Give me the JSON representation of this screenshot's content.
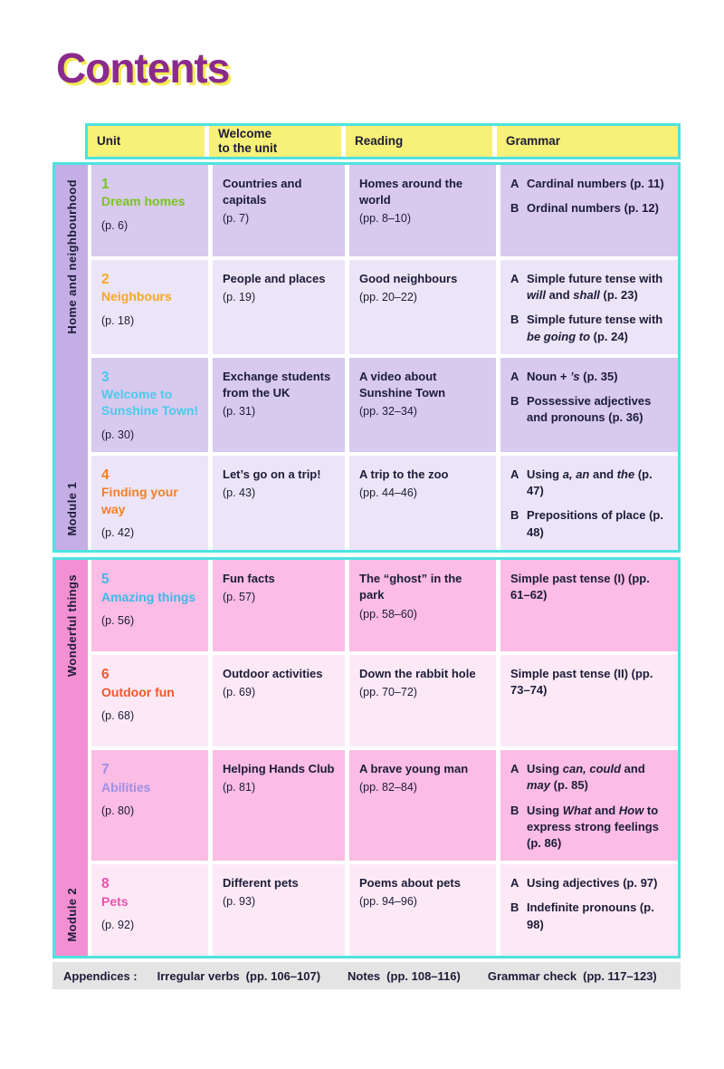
{
  "page": {
    "title": "Contents"
  },
  "colors": {
    "table_border": "#4fe2df",
    "header_bg": "#f8f177",
    "footer_bg": "#e4e4e4",
    "text": "#1c1c38",
    "title": "#8b2a8e",
    "title_shadow": "#f3ec52"
  },
  "header": {
    "columns": [
      "Unit",
      "Welcome\nto the unit",
      "Reading",
      "Grammar"
    ]
  },
  "modules": [
    {
      "name": "Module 1",
      "theme": "Home and neighbourhood",
      "sidebar_color": "#c4aee5",
      "row_colors": [
        "#d8c9ef",
        "#ece5f7"
      ],
      "rows": [
        {
          "number": "1",
          "title": "Dream homes",
          "page": "(p. 6)",
          "color": "#7ac51d",
          "welcome": {
            "text": "Countries and capitals",
            "page": "(p. 7)"
          },
          "reading": {
            "text": "Homes around the world",
            "page": "(pp. 8–10)"
          },
          "grammar": [
            {
              "label": "A",
              "segments": [
                {
                  "text": "Cardinal numbers (p. 11)"
                }
              ]
            },
            {
              "label": "B",
              "segments": [
                {
                  "text": "Ordinal numbers (p. 12)"
                }
              ]
            }
          ]
        },
        {
          "number": "2",
          "title": "Neighbours",
          "page": "(p. 18)",
          "color": "#f6a821",
          "welcome": {
            "text": "People and places",
            "page": "(p. 19)"
          },
          "reading": {
            "text": "Good neighbours",
            "page": "(pp. 20–22)"
          },
          "grammar": [
            {
              "label": "A",
              "segments": [
                {
                  "text": "Simple future tense with "
                },
                {
                  "text": "will",
                  "italic": true
                },
                {
                  "text": " and "
                },
                {
                  "text": "shall",
                  "italic": true
                },
                {
                  "text": " (p. 23)"
                }
              ]
            },
            {
              "label": "B",
              "segments": [
                {
                  "text": "Simple future tense with "
                },
                {
                  "text": "be going to",
                  "italic": true
                },
                {
                  "text": " (p. 24)"
                }
              ]
            }
          ]
        },
        {
          "number": "3",
          "title": "Welcome to Sunshine Town!",
          "page": "(p. 30)",
          "color": "#49cbe9",
          "welcome": {
            "text": "Exchange students from the UK",
            "page": "(p. 31)"
          },
          "reading": {
            "text": "A video about Sunshine Town",
            "page": "(pp. 32–34)"
          },
          "grammar": [
            {
              "label": "A",
              "segments": [
                {
                  "text": "Noun + "
                },
                {
                  "text": "’s",
                  "italic": true
                },
                {
                  "text": " (p. 35)"
                }
              ]
            },
            {
              "label": "B",
              "segments": [
                {
                  "text": "Possessive adjectives and pronouns (p. 36)"
                }
              ]
            }
          ]
        },
        {
          "number": "4",
          "title": "Finding your way",
          "page": "(p. 42)",
          "color": "#f58025",
          "welcome": {
            "text": "Let’s go on a trip!",
            "page": "(p. 43)"
          },
          "reading": {
            "text": "A trip to the zoo",
            "page": "(pp. 44–46)"
          },
          "grammar": [
            {
              "label": "A",
              "segments": [
                {
                  "text": "Using "
                },
                {
                  "text": "a, an",
                  "italic": true
                },
                {
                  "text": " and "
                },
                {
                  "text": "the",
                  "italic": true
                },
                {
                  "text": " (p. 47)"
                }
              ]
            },
            {
              "label": "B",
              "segments": [
                {
                  "text": "Prepositions of place (p. 48)"
                }
              ]
            }
          ]
        }
      ]
    },
    {
      "name": "Module 2",
      "theme": "Wonderful things",
      "sidebar_color": "#f38fd3",
      "row_colors": [
        "#fbbce5",
        "#fde9f6"
      ],
      "rows": [
        {
          "number": "5",
          "title": "Amazing things",
          "page": "(p. 56)",
          "color": "#3eb9e8",
          "welcome": {
            "text": "Fun facts",
            "page": "(p. 57)"
          },
          "reading": {
            "text": "The “ghost” in the park",
            "page": "(pp. 58–60)"
          },
          "grammar": [
            {
              "label": "",
              "segments": [
                {
                  "text": "Simple past tense (I) (pp. 61–62)"
                }
              ]
            }
          ]
        },
        {
          "number": "6",
          "title": "Outdoor fun",
          "page": "(p. 68)",
          "color": "#f2572b",
          "welcome": {
            "text": "Outdoor activities",
            "page": "(p. 69)"
          },
          "reading": {
            "text": "Down the rabbit hole",
            "page": "(pp. 70–72)"
          },
          "grammar": [
            {
              "label": "",
              "segments": [
                {
                  "text": "Simple past tense (II) (pp. 73–74)"
                }
              ]
            }
          ]
        },
        {
          "number": "7",
          "title": "Abilities",
          "page": "(p. 80)",
          "color": "#9e8fe2",
          "welcome": {
            "text": "Helping Hands Club",
            "page": "(p. 81)"
          },
          "reading": {
            "text": "A brave young man",
            "page": "(pp. 82–84)"
          },
          "grammar": [
            {
              "label": "A",
              "segments": [
                {
                  "text": "Using "
                },
                {
                  "text": "can, could",
                  "italic": true
                },
                {
                  "text": " and "
                },
                {
                  "text": "may",
                  "italic": true
                },
                {
                  "text": " (p. 85)"
                }
              ]
            },
            {
              "label": "B",
              "segments": [
                {
                  "text": "Using "
                },
                {
                  "text": "What",
                  "italic": true
                },
                {
                  "text": " and "
                },
                {
                  "text": "How",
                  "italic": true
                },
                {
                  "text": " to express strong feelings (p. 86)"
                }
              ]
            }
          ]
        },
        {
          "number": "8",
          "title": "Pets",
          "page": "(p. 92)",
          "color": "#ee4fae",
          "welcome": {
            "text": "Different pets",
            "page": "(p. 93)"
          },
          "reading": {
            "text": "Poems about pets",
            "page": "(pp. 94–96)"
          },
          "grammar": [
            {
              "label": "A",
              "segments": [
                {
                  "text": "Using adjectives (p. 97)"
                }
              ]
            },
            {
              "label": "B",
              "segments": [
                {
                  "text": "Indefinite pronouns (p. 98)"
                }
              ]
            }
          ]
        }
      ]
    }
  ],
  "footer": {
    "prefix": "Appendices :",
    "items": [
      {
        "label": "Irregular verbs",
        "pages": "(pp. 106–107)"
      },
      {
        "label": "Notes",
        "pages": "(pp. 108–116)"
      },
      {
        "label": "Grammar check",
        "pages": "(pp. 117–123)"
      }
    ]
  }
}
